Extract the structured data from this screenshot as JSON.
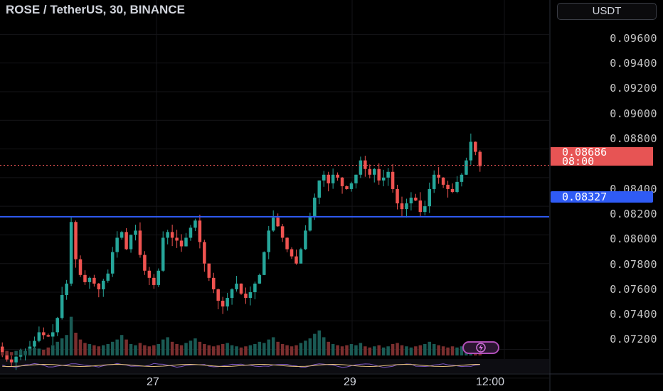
{
  "header": {
    "title": "ROSE / TetherUS, 30, BINANCE"
  },
  "currency_button": {
    "label": "USDT"
  },
  "price_axis": {
    "labels": [
      "0.09600",
      "0.09400",
      "0.09200",
      "0.09000",
      "0.08800",
      "0.08400",
      "0.08200",
      "0.08000",
      "0.07800",
      "0.07600",
      "0.07400",
      "0.07200"
    ]
  },
  "time_axis": {
    "labels": [
      "27",
      "29",
      "12:00"
    ]
  },
  "current_price": {
    "value": "0.08686",
    "countdown": "08:00",
    "color": "#e75454"
  },
  "horizontal_level": {
    "value": "0.08327",
    "color": "#2f5bf5"
  },
  "colors": {
    "up": "#26a69a",
    "down": "#ef5350",
    "background": "#000000"
  },
  "flash_icon": "lightning-icon",
  "chart_data": {
    "type": "candlestick",
    "symbol": "ROSE / TetherUS",
    "interval": "30",
    "exchange": "BINANCE",
    "ylim": [
      0.0711,
      0.0984
    ],
    "close_path_approx": [
      0.0738,
      0.0733,
      0.0731,
      0.0735,
      0.0737,
      0.0739,
      0.0742,
      0.0746,
      0.0752,
      0.075,
      0.0749,
      0.0752,
      0.0762,
      0.0778,
      0.0786,
      0.0829,
      0.0803,
      0.0792,
      0.0787,
      0.079,
      0.0786,
      0.0782,
      0.0788,
      0.0793,
      0.0808,
      0.0818,
      0.0822,
      0.081,
      0.082,
      0.0823,
      0.0806,
      0.0795,
      0.079,
      0.0785,
      0.0795,
      0.0818,
      0.0822,
      0.0818,
      0.0816,
      0.0812,
      0.0818,
      0.0825,
      0.083,
      0.0815,
      0.08,
      0.079,
      0.0782,
      0.0774,
      0.077,
      0.0776,
      0.0782,
      0.0786,
      0.0779,
      0.0776,
      0.078,
      0.0786,
      0.0792,
      0.0808,
      0.0823,
      0.0832,
      0.0826,
      0.0818,
      0.081,
      0.0805,
      0.08,
      0.081,
      0.0823,
      0.0833,
      0.0846,
      0.0858,
      0.0862,
      0.0856,
      0.0862,
      0.086,
      0.0854,
      0.0852,
      0.0856,
      0.0862,
      0.0872,
      0.0866,
      0.0862,
      0.0866,
      0.0858,
      0.086,
      0.0864,
      0.0852,
      0.0842,
      0.0838,
      0.0842,
      0.0846,
      0.0844,
      0.0836,
      0.084,
      0.0852,
      0.0862,
      0.086,
      0.0855,
      0.0852,
      0.085,
      0.0857,
      0.0862,
      0.0872,
      0.0885,
      0.0878,
      0.0868
    ],
    "volume_path_approx": [
      3,
      4,
      3,
      4,
      5,
      4,
      6,
      7,
      6,
      5,
      7,
      9,
      12,
      15,
      18,
      34,
      20,
      14,
      11,
      10,
      9,
      8,
      9,
      10,
      12,
      14,
      18,
      14,
      10,
      9,
      11,
      9,
      8,
      9,
      10,
      14,
      16,
      12,
      10,
      9,
      11,
      13,
      15,
      12,
      10,
      9,
      8,
      9,
      10,
      11,
      9,
      8,
      7,
      8,
      9,
      10,
      12,
      11,
      14,
      16,
      12,
      10,
      9,
      8,
      9,
      11,
      13,
      15,
      19,
      22,
      16,
      12,
      10,
      9,
      8,
      9,
      10,
      9,
      11,
      8,
      7,
      8,
      9,
      7,
      8,
      10,
      11,
      9,
      8,
      7,
      8,
      9,
      10,
      12,
      10,
      9,
      8,
      7,
      8,
      7,
      8,
      9,
      10,
      8,
      7
    ]
  }
}
